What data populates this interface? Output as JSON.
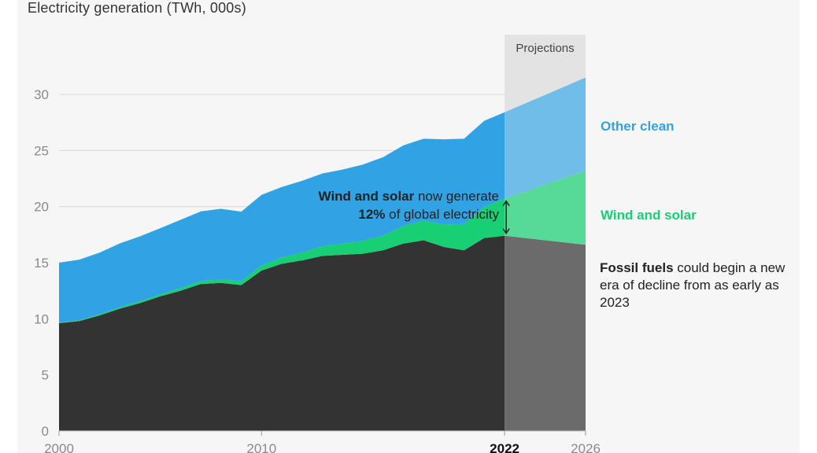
{
  "chart_data": {
    "type": "area",
    "title": "",
    "ylabel": "Electricity generation (TWh, 000s)",
    "xlabel": "",
    "xlim": [
      2000,
      2026
    ],
    "ylim": [
      0,
      30
    ],
    "yticks": [
      0,
      5,
      10,
      15,
      20,
      25,
      30
    ],
    "xticks": [
      2000,
      2010,
      2022,
      2026
    ],
    "grid": true,
    "stacked": true,
    "x": [
      2000,
      2001,
      2002,
      2003,
      2004,
      2005,
      2006,
      2007,
      2008,
      2009,
      2010,
      2011,
      2012,
      2013,
      2014,
      2015,
      2016,
      2017,
      2018,
      2019,
      2020,
      2021,
      2022,
      2026
    ],
    "series": [
      {
        "name": "Fossil fuels",
        "color": "#333333",
        "values": [
          9.6,
          9.8,
          10.3,
          10.9,
          11.4,
          12.0,
          12.5,
          13.1,
          13.2,
          13.0,
          14.3,
          14.9,
          15.2,
          15.6,
          15.7,
          15.8,
          16.1,
          16.7,
          17.0,
          16.4,
          16.1,
          17.2,
          17.4,
          16.6
        ]
      },
      {
        "name": "Wind and solar",
        "color": "#19cf74",
        "values": [
          0.05,
          0.07,
          0.1,
          0.12,
          0.15,
          0.18,
          0.22,
          0.27,
          0.3,
          0.35,
          0.45,
          0.55,
          0.7,
          0.85,
          1.0,
          1.15,
          1.3,
          1.55,
          1.75,
          2.0,
          2.35,
          2.75,
          3.3,
          6.6
        ]
      },
      {
        "name": "Other clean",
        "color": "#31a2e3",
        "values": [
          5.35,
          5.4,
          5.5,
          5.7,
          5.8,
          5.9,
          6.1,
          6.2,
          6.3,
          6.2,
          6.3,
          6.3,
          6.4,
          6.5,
          6.6,
          6.8,
          7.0,
          7.2,
          7.3,
          7.6,
          7.6,
          7.7,
          7.7,
          8.3
        ]
      }
    ],
    "projections": {
      "from": 2022,
      "to": 2026,
      "label": "Projections"
    },
    "highlight_tick": 2022,
    "annotations": {
      "series_labels": [
        "Other clean",
        "Wind and solar"
      ],
      "fossil_note_bold": "Fossil fuels",
      "fossil_note_rest": " could begin a new era of decline from as early as 2023",
      "wind_note_bold": "Wind and solar",
      "wind_note_line1": " now generate",
      "wind_note_bold2": "12%",
      "wind_note_line2": " of global electricity"
    }
  },
  "colors": {
    "panel": "#f6f6f6",
    "grid": "#d9d9d9",
    "tick_text": "#8a8a8a",
    "fossil_projection": "#6b6b6b",
    "wind_projection": "#57da97",
    "other_projection": "#71bdea",
    "projection_band": "#e3e3e3"
  }
}
